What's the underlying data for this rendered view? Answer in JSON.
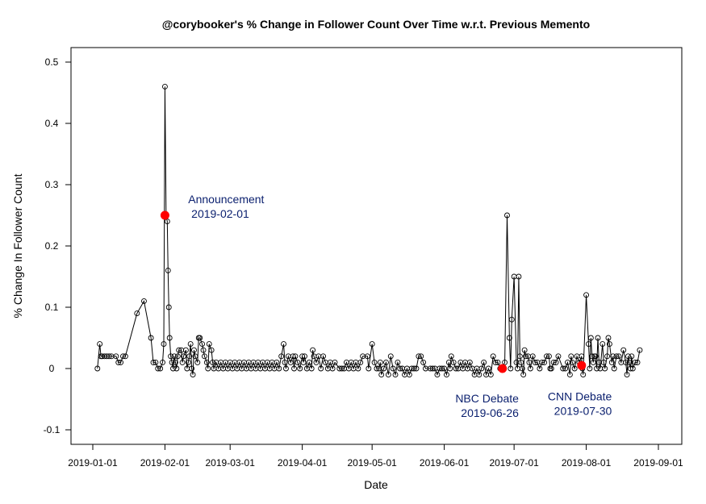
{
  "chart_data": {
    "type": "line",
    "title": "@corybooker's % Change in Follower Count Over Time w.r.t. Previous Memento",
    "xlabel": "Date",
    "ylabel": "% Change In Follower Count",
    "xlim": [
      "2019-01-01",
      "2019-09-01"
    ],
    "ylim": [
      -0.1,
      0.5
    ],
    "x_ticks": [
      "2019-01-01",
      "2019-02-01",
      "2019-03-01",
      "2019-04-01",
      "2019-05-01",
      "2019-06-01",
      "2019-07-01",
      "2019-08-01",
      "2019-09-01"
    ],
    "y_ticks": [
      -0.1,
      0,
      0.1,
      0.2,
      0.3,
      0.4,
      0.5
    ],
    "grid": false,
    "line_color": "#000000",
    "marker": "open-circle",
    "highlight_color": "#ff0000",
    "series": [
      {
        "points": [
          [
            "2019-01-03",
            0
          ],
          [
            "2019-01-04",
            0.04
          ],
          [
            "2019-01-04",
            0.02
          ],
          [
            "2019-01-05",
            0.02
          ],
          [
            "2019-01-06",
            0.02
          ],
          [
            "2019-01-07",
            0.02
          ],
          [
            "2019-01-08",
            0.02
          ],
          [
            "2019-01-09",
            0.02
          ],
          [
            "2019-01-11",
            0.02
          ],
          [
            "2019-01-12",
            0.01
          ],
          [
            "2019-01-13",
            0.01
          ],
          [
            "2019-01-14",
            0.02
          ],
          [
            "2019-01-15",
            0.02
          ],
          [
            "2019-01-20",
            0.09
          ],
          [
            "2019-01-23",
            0.11
          ],
          [
            "2019-01-26",
            0.05
          ],
          [
            "2019-01-27",
            0.01
          ],
          [
            "2019-01-28",
            0.01
          ],
          [
            "2019-01-29",
            0
          ],
          [
            "2019-01-30",
            0
          ],
          [
            "2019-01-31",
            0.01
          ],
          [
            "2019-01-31",
            0.04
          ],
          [
            "2019-02-01",
            0.46
          ],
          [
            "2019-02-01",
            0.25
          ],
          [
            "2019-02-02",
            0.24
          ],
          [
            "2019-02-02",
            0.16
          ],
          [
            "2019-02-02",
            0.1
          ],
          [
            "2019-02-03",
            0.05
          ],
          [
            "2019-02-03",
            0.02
          ],
          [
            "2019-02-04",
            0.01
          ],
          [
            "2019-02-04",
            0
          ],
          [
            "2019-02-05",
            0.02
          ],
          [
            "2019-02-05",
            0.01
          ],
          [
            "2019-02-06",
            0
          ],
          [
            "2019-02-06",
            0.02
          ],
          [
            "2019-02-07",
            0.03
          ],
          [
            "2019-02-08",
            0.03
          ],
          [
            "2019-02-08",
            0.01
          ],
          [
            "2019-02-09",
            0.02
          ],
          [
            "2019-02-10",
            0.03
          ],
          [
            "2019-02-10",
            0
          ],
          [
            "2019-02-11",
            0.01
          ],
          [
            "2019-02-11",
            0.02
          ],
          [
            "2019-02-12",
            0.04
          ],
          [
            "2019-02-12",
            0
          ],
          [
            "2019-02-13",
            -0.01
          ],
          [
            "2019-02-13",
            0.03
          ],
          [
            "2019-02-14",
            0.02
          ],
          [
            "2019-02-15",
            0.01
          ],
          [
            "2019-02-15",
            0.05
          ],
          [
            "2019-02-16",
            0.05
          ],
          [
            "2019-02-17",
            0.04
          ],
          [
            "2019-02-17",
            0.03
          ],
          [
            "2019-02-18",
            0.02
          ],
          [
            "2019-02-19",
            0.01
          ],
          [
            "2019-02-19",
            0
          ],
          [
            "2019-02-20",
            0.04
          ],
          [
            "2019-02-21",
            0.03
          ],
          [
            "2019-02-21",
            0.01
          ],
          [
            "2019-02-22",
            0
          ],
          [
            "2019-02-23",
            0.01
          ],
          [
            "2019-02-24",
            0
          ],
          [
            "2019-02-25",
            0.01
          ],
          [
            "2019-02-26",
            0
          ],
          [
            "2019-02-27",
            0.01
          ],
          [
            "2019-02-28",
            0
          ],
          [
            "2019-03-01",
            0.01
          ],
          [
            "2019-03-02",
            0
          ],
          [
            "2019-03-03",
            0.01
          ],
          [
            "2019-03-04",
            0
          ],
          [
            "2019-03-05",
            0.01
          ],
          [
            "2019-03-06",
            0
          ],
          [
            "2019-03-07",
            0.01
          ],
          [
            "2019-03-08",
            0
          ],
          [
            "2019-03-09",
            0.01
          ],
          [
            "2019-03-10",
            0
          ],
          [
            "2019-03-11",
            0.01
          ],
          [
            "2019-03-12",
            0
          ],
          [
            "2019-03-13",
            0.01
          ],
          [
            "2019-03-14",
            0
          ],
          [
            "2019-03-15",
            0.01
          ],
          [
            "2019-03-16",
            0
          ],
          [
            "2019-03-17",
            0.01
          ],
          [
            "2019-03-18",
            0
          ],
          [
            "2019-03-19",
            0.01
          ],
          [
            "2019-03-20",
            0
          ],
          [
            "2019-03-21",
            0.01
          ],
          [
            "2019-03-22",
            0
          ],
          [
            "2019-03-23",
            0.02
          ],
          [
            "2019-03-24",
            0.04
          ],
          [
            "2019-03-24",
            0.01
          ],
          [
            "2019-03-25",
            0
          ],
          [
            "2019-03-26",
            0.02
          ],
          [
            "2019-03-27",
            0.01
          ],
          [
            "2019-03-28",
            0.02
          ],
          [
            "2019-03-28",
            0
          ],
          [
            "2019-03-29",
            0.02
          ],
          [
            "2019-03-30",
            0.01
          ],
          [
            "2019-03-31",
            0
          ],
          [
            "2019-04-01",
            0.02
          ],
          [
            "2019-04-01",
            0.01
          ],
          [
            "2019-04-02",
            0.02
          ],
          [
            "2019-04-03",
            0
          ],
          [
            "2019-04-04",
            0.01
          ],
          [
            "2019-04-05",
            0
          ],
          [
            "2019-04-05",
            0.03
          ],
          [
            "2019-04-06",
            0.02
          ],
          [
            "2019-04-07",
            0.01
          ],
          [
            "2019-04-08",
            0.02
          ],
          [
            "2019-04-09",
            0
          ],
          [
            "2019-04-10",
            0.02
          ],
          [
            "2019-04-11",
            0.01
          ],
          [
            "2019-04-12",
            0
          ],
          [
            "2019-04-13",
            0.01
          ],
          [
            "2019-04-14",
            0
          ],
          [
            "2019-04-15",
            0.01
          ],
          [
            "2019-04-17",
            0
          ],
          [
            "2019-04-18",
            0
          ],
          [
            "2019-04-19",
            0
          ],
          [
            "2019-04-20",
            0.01
          ],
          [
            "2019-04-21",
            0
          ],
          [
            "2019-04-22",
            0.01
          ],
          [
            "2019-04-23",
            0
          ],
          [
            "2019-04-24",
            0.01
          ],
          [
            "2019-04-25",
            0
          ],
          [
            "2019-04-26",
            0.01
          ],
          [
            "2019-04-27",
            0.02
          ],
          [
            "2019-04-29",
            0.02
          ],
          [
            "2019-04-29",
            0
          ],
          [
            "2019-05-01",
            0.04
          ],
          [
            "2019-05-02",
            0.01
          ],
          [
            "2019-05-03",
            0
          ],
          [
            "2019-05-04",
            0
          ],
          [
            "2019-05-04",
            0.01
          ],
          [
            "2019-05-05",
            -0.01
          ],
          [
            "2019-05-06",
            0
          ],
          [
            "2019-05-07",
            0.01
          ],
          [
            "2019-05-08",
            -0.01
          ],
          [
            "2019-05-09",
            0.02
          ],
          [
            "2019-05-10",
            0
          ],
          [
            "2019-05-11",
            -0.01
          ],
          [
            "2019-05-12",
            0.01
          ],
          [
            "2019-05-13",
            0
          ],
          [
            "2019-05-14",
            0
          ],
          [
            "2019-05-15",
            -0.01
          ],
          [
            "2019-05-16",
            0
          ],
          [
            "2019-05-17",
            -0.01
          ],
          [
            "2019-05-18",
            0
          ],
          [
            "2019-05-19",
            0
          ],
          [
            "2019-05-20",
            0
          ],
          [
            "2019-05-21",
            0.02
          ],
          [
            "2019-05-22",
            0.02
          ],
          [
            "2019-05-23",
            0.01
          ],
          [
            "2019-05-24",
            0
          ],
          [
            "2019-05-26",
            0
          ],
          [
            "2019-05-27",
            0
          ],
          [
            "2019-05-28",
            0
          ],
          [
            "2019-05-29",
            -0.01
          ],
          [
            "2019-05-30",
            0
          ],
          [
            "2019-05-31",
            0
          ],
          [
            "2019-06-01",
            0
          ],
          [
            "2019-06-02",
            -0.01
          ],
          [
            "2019-06-03",
            0.01
          ],
          [
            "2019-06-03",
            0
          ],
          [
            "2019-06-04",
            0.02
          ],
          [
            "2019-06-05",
            0.01
          ],
          [
            "2019-06-06",
            0
          ],
          [
            "2019-06-07",
            0
          ],
          [
            "2019-06-08",
            0.01
          ],
          [
            "2019-06-09",
            0
          ],
          [
            "2019-06-10",
            0.01
          ],
          [
            "2019-06-11",
            0
          ],
          [
            "2019-06-12",
            0.01
          ],
          [
            "2019-06-13",
            0
          ],
          [
            "2019-06-14",
            -0.01
          ],
          [
            "2019-06-15",
            0
          ],
          [
            "2019-06-16",
            -0.01
          ],
          [
            "2019-06-17",
            0
          ],
          [
            "2019-06-18",
            0.01
          ],
          [
            "2019-06-19",
            -0.01
          ],
          [
            "2019-06-20",
            0
          ],
          [
            "2019-06-21",
            -0.01
          ],
          [
            "2019-06-22",
            0.02
          ],
          [
            "2019-06-23",
            0.01
          ],
          [
            "2019-06-24",
            0.01
          ],
          [
            "2019-06-25",
            0
          ],
          [
            "2019-06-26",
            0
          ],
          [
            "2019-06-27",
            0.01
          ],
          [
            "2019-06-28",
            0.25
          ],
          [
            "2019-06-29",
            0.05
          ],
          [
            "2019-06-29",
            0
          ],
          [
            "2019-06-30",
            0.08
          ],
          [
            "2019-07-01",
            0.15
          ],
          [
            "2019-07-02",
            0.01
          ],
          [
            "2019-07-02",
            0
          ],
          [
            "2019-07-03",
            0.15
          ],
          [
            "2019-07-03",
            0.02
          ],
          [
            "2019-07-04",
            0.01
          ],
          [
            "2019-07-04",
            0
          ],
          [
            "2019-07-05",
            -0.01
          ],
          [
            "2019-07-05",
            0.03
          ],
          [
            "2019-07-06",
            0.02
          ],
          [
            "2019-07-07",
            0.02
          ],
          [
            "2019-07-07",
            0.01
          ],
          [
            "2019-07-08",
            0
          ],
          [
            "2019-07-09",
            0.02
          ],
          [
            "2019-07-10",
            0.01
          ],
          [
            "2019-07-11",
            0.01
          ],
          [
            "2019-07-12",
            0
          ],
          [
            "2019-07-13",
            0.01
          ],
          [
            "2019-07-14",
            0.01
          ],
          [
            "2019-07-15",
            0.02
          ],
          [
            "2019-07-16",
            0.02
          ],
          [
            "2019-07-16",
            0
          ],
          [
            "2019-07-17",
            0
          ],
          [
            "2019-07-18",
            0.01
          ],
          [
            "2019-07-19",
            0.01
          ],
          [
            "2019-07-20",
            0.02
          ],
          [
            "2019-07-22",
            0
          ],
          [
            "2019-07-23",
            0
          ],
          [
            "2019-07-24",
            0.01
          ],
          [
            "2019-07-25",
            -0.01
          ],
          [
            "2019-07-25",
            0.02
          ],
          [
            "2019-07-26",
            0.01
          ],
          [
            "2019-07-27",
            0
          ],
          [
            "2019-07-28",
            0.02
          ],
          [
            "2019-07-29",
            0.01
          ],
          [
            "2019-07-30",
            0.02
          ],
          [
            "2019-07-30",
            0
          ],
          [
            "2019-07-30",
            -0.01
          ],
          [
            "2019-08-01",
            0.12
          ],
          [
            "2019-08-02",
            0.04
          ],
          [
            "2019-08-02",
            0
          ],
          [
            "2019-08-03",
            0.05
          ],
          [
            "2019-08-03",
            0.02
          ],
          [
            "2019-08-04",
            0.01
          ],
          [
            "2019-08-04",
            0.02
          ],
          [
            "2019-08-05",
            0.02
          ],
          [
            "2019-08-05",
            0
          ],
          [
            "2019-08-06",
            0.05
          ],
          [
            "2019-08-06",
            0.01
          ],
          [
            "2019-08-07",
            0
          ],
          [
            "2019-08-08",
            0.04
          ],
          [
            "2019-08-08",
            0.01
          ],
          [
            "2019-08-09",
            0
          ],
          [
            "2019-08-10",
            0.02
          ],
          [
            "2019-08-10",
            0.05
          ],
          [
            "2019-08-11",
            0.04
          ],
          [
            "2019-08-12",
            0.01
          ],
          [
            "2019-08-12",
            0.02
          ],
          [
            "2019-08-13",
            0
          ],
          [
            "2019-08-14",
            0.02
          ],
          [
            "2019-08-15",
            0.02
          ],
          [
            "2019-08-16",
            0.01
          ],
          [
            "2019-08-17",
            0.03
          ],
          [
            "2019-08-18",
            0.01
          ],
          [
            "2019-08-18",
            -0.01
          ],
          [
            "2019-08-19",
            0.02
          ],
          [
            "2019-08-19",
            0.01
          ],
          [
            "2019-08-20",
            0
          ],
          [
            "2019-08-20",
            0.02
          ],
          [
            "2019-08-21",
            0
          ],
          [
            "2019-08-22",
            0.01
          ],
          [
            "2019-08-23",
            0.01
          ],
          [
            "2019-08-24",
            0.03
          ]
        ]
      }
    ],
    "highlights": [
      {
        "x": "2019-02-01",
        "y": 0.25
      },
      {
        "x": "2019-06-26",
        "y": 0
      },
      {
        "x": "2019-07-30",
        "y": 0.005
      }
    ],
    "annotations": [
      {
        "lines": [
          "Announcement",
          " 2019-02-01"
        ],
        "x": "2019-02-11",
        "y": 0.27,
        "anchor": "start"
      },
      {
        "lines": [
          "NBC Debate",
          "2019-06-26"
        ],
        "x": "2019-07-03",
        "y": -0.055,
        "anchor": "end"
      },
      {
        "lines": [
          "CNN Debate",
          "2019-07-30"
        ],
        "x": "2019-08-12",
        "y": -0.052,
        "anchor": "end"
      }
    ]
  }
}
